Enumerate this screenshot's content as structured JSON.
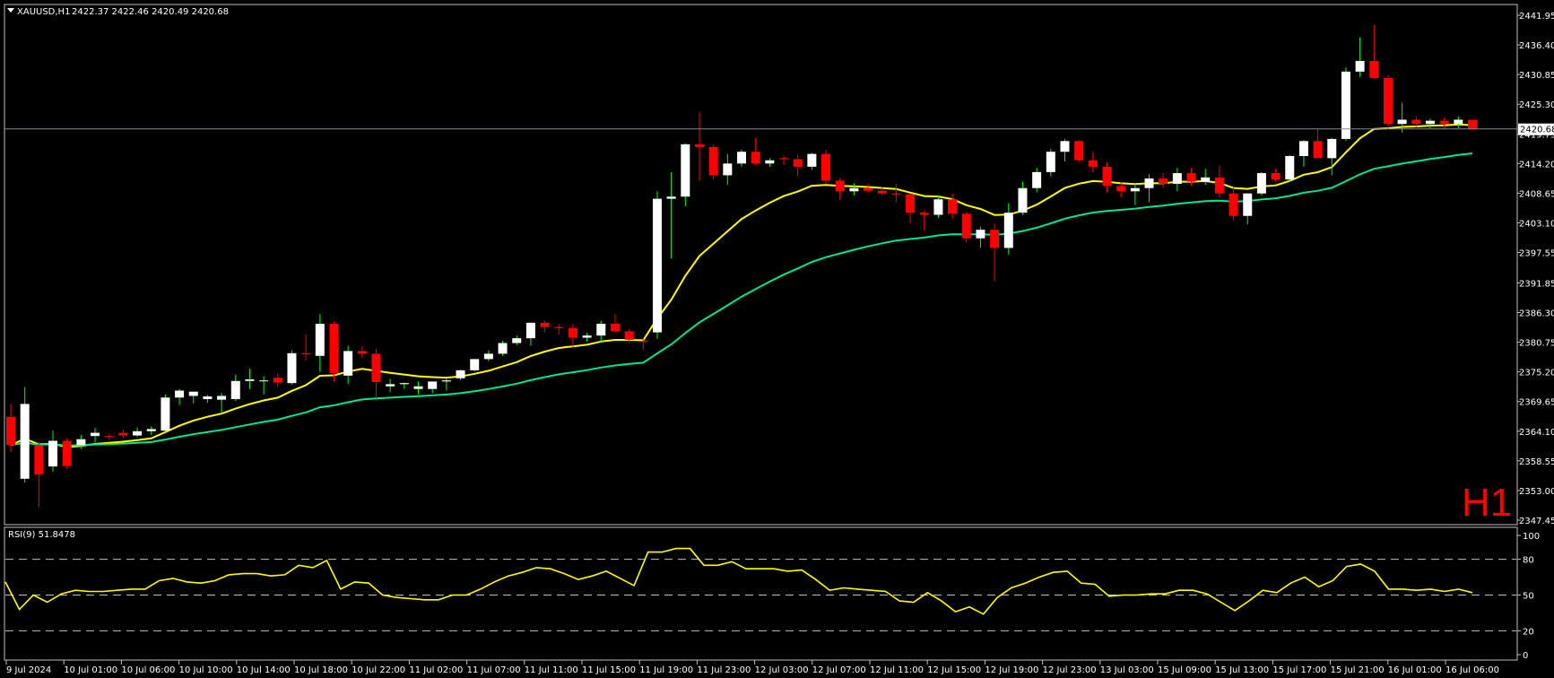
{
  "window": {
    "symbol": "XAUUSD,H1",
    "ohlc": "2422.37 2422.46 2420.49 2420.68",
    "timeframe_label": "H1"
  },
  "chart_data": [
    {
      "type": "candlestick",
      "ylim": [
        2347.45,
        2441.95
      ],
      "y_ticks": [
        "2441.95",
        "2436.40",
        "2430.85",
        "2425.30",
        "2419.75",
        "2414.20",
        "2408.65",
        "2403.10",
        "2397.55",
        "2391.85",
        "2386.30",
        "2380.75",
        "2375.20",
        "2369.65",
        "2364.10",
        "2358.55",
        "2353.00",
        "2347.45"
      ],
      "current_price": "2420.68",
      "x_tick_labels": [
        "9 Jul 2024",
        "10 Jul 01:00",
        "10 Jul 06:00",
        "10 Jul 10:00",
        "10 Jul 14:00",
        "10 Jul 18:00",
        "10 Jul 22:00",
        "11 Jul 02:00",
        "11 Jul 07:00",
        "11 Jul 11:00",
        "11 Jul 15:00",
        "11 Jul 19:00",
        "11 Jul 23:00",
        "12 Jul 03:00",
        "12 Jul 07:00",
        "12 Jul 11:00",
        "12 Jul 15:00",
        "12 Jul 19:00",
        "12 Jul 23:00",
        "13 Jul 03:00",
        "15 Jul 09:00",
        "15 Jul 13:00",
        "15 Jul 17:00",
        "15 Jul 21:00",
        "16 Jul 01:00",
        "16 Jul 06:00"
      ],
      "colors": {
        "bull": "#ffffff",
        "bear": "#ff0000",
        "ma_fast": "#ffff00",
        "ma_slow": "#00e68a",
        "wick_bull": "#00ff00",
        "wick_bear": "#ff0000"
      },
      "candles": [
        [
          2366.8,
          2369.2,
          2360.2,
          2361.5
        ],
        [
          2355.2,
          2372.4,
          2354.5,
          2369.2
        ],
        [
          2361.5,
          2362.0,
          2349.8,
          2356.0
        ],
        [
          2357.5,
          2364.2,
          2356.5,
          2362.3
        ],
        [
          2362.3,
          2362.8,
          2357.0,
          2357.6
        ],
        [
          2361.5,
          2363.4,
          2360.8,
          2362.6
        ],
        [
          2363.2,
          2364.7,
          2362.0,
          2363.8
        ],
        [
          2363.2,
          2363.6,
          2362.5,
          2363.0
        ],
        [
          2363.8,
          2364.4,
          2362.8,
          2363.3
        ],
        [
          2363.3,
          2364.8,
          2363.0,
          2364.1
        ],
        [
          2364.1,
          2365.0,
          2363.4,
          2364.5
        ],
        [
          2364.2,
          2371.0,
          2364.0,
          2370.4
        ],
        [
          2370.4,
          2372.0,
          2369.0,
          2371.7
        ],
        [
          2370.7,
          2371.4,
          2369.3,
          2371.5
        ],
        [
          2370.1,
          2370.9,
          2369.4,
          2370.6
        ],
        [
          2370.0,
          2371.3,
          2367.4,
          2370.7
        ],
        [
          2370.1,
          2374.7,
          2369.8,
          2373.5
        ],
        [
          2373.5,
          2375.8,
          2372.0,
          2373.8
        ],
        [
          2373.5,
          2374.4,
          2371.0,
          2373.6
        ],
        [
          2374.1,
          2374.9,
          2372.4,
          2373.2
        ],
        [
          2373.1,
          2379.2,
          2372.8,
          2378.7
        ],
        [
          2378.7,
          2382.2,
          2377.3,
          2378.5
        ],
        [
          2378.2,
          2386.0,
          2375.2,
          2384.2
        ],
        [
          2384.2,
          2384.6,
          2373.4,
          2375.0
        ],
        [
          2374.5,
          2380.1,
          2372.9,
          2379.1
        ],
        [
          2379.1,
          2380.0,
          2377.8,
          2378.6
        ],
        [
          2378.6,
          2379.5,
          2369.8,
          2373.3
        ],
        [
          2372.5,
          2373.9,
          2371.4,
          2372.9
        ],
        [
          2372.9,
          2373.2,
          2372.0,
          2373.1
        ],
        [
          2372.0,
          2373.4,
          2371.0,
          2372.5
        ],
        [
          2372.0,
          2373.4,
          2371.2,
          2373.4
        ],
        [
          2373.4,
          2374.0,
          2371.7,
          2373.6
        ],
        [
          2374.0,
          2375.6,
          2373.6,
          2375.5
        ],
        [
          2375.5,
          2377.6,
          2375.3,
          2377.6
        ],
        [
          2377.6,
          2379.2,
          2377.2,
          2378.6
        ],
        [
          2378.6,
          2381.0,
          2378.2,
          2380.6
        ],
        [
          2380.6,
          2382.0,
          2380.2,
          2381.5
        ],
        [
          2381.5,
          2384.4,
          2380.1,
          2384.4
        ],
        [
          2384.4,
          2384.8,
          2382.6,
          2383.6
        ],
        [
          2383.6,
          2384.2,
          2382.2,
          2383.4
        ],
        [
          2383.4,
          2384.2,
          2379.8,
          2381.6
        ],
        [
          2381.6,
          2382.5,
          2380.9,
          2382.0
        ],
        [
          2382.0,
          2384.8,
          2380.8,
          2384.2
        ],
        [
          2384.2,
          2386.0,
          2382.6,
          2382.8
        ],
        [
          2382.8,
          2383.2,
          2380.6,
          2381.2
        ],
        [
          2381.0,
          2381.6,
          2379.3,
          2380.8
        ],
        [
          2382.6,
          2409.0,
          2381.4,
          2407.6
        ],
        [
          2407.6,
          2412.6,
          2396.4,
          2408.0
        ],
        [
          2408.0,
          2418.0,
          2406.2,
          2417.8
        ],
        [
          2417.8,
          2423.8,
          2411.0,
          2417.3
        ],
        [
          2417.3,
          2417.8,
          2411.2,
          2412.0
        ],
        [
          2412.0,
          2416.0,
          2410.2,
          2414.2
        ],
        [
          2414.2,
          2416.8,
          2413.6,
          2416.4
        ],
        [
          2416.4,
          2419.0,
          2413.8,
          2414.2
        ],
        [
          2414.2,
          2415.2,
          2413.6,
          2414.8
        ],
        [
          2415.2,
          2415.6,
          2413.9,
          2415.0
        ],
        [
          2415.0,
          2415.8,
          2411.8,
          2413.6
        ],
        [
          2413.6,
          2416.2,
          2413.0,
          2416.0
        ],
        [
          2416.0,
          2416.8,
          2410.4,
          2411.0
        ],
        [
          2411.0,
          2411.4,
          2407.4,
          2409.0
        ],
        [
          2409.0,
          2410.5,
          2408.2,
          2409.6
        ],
        [
          2409.6,
          2410.4,
          2408.8,
          2409.1
        ],
        [
          2409.1,
          2409.8,
          2408.2,
          2408.6
        ],
        [
          2408.6,
          2410.4,
          2407.0,
          2408.4
        ],
        [
          2408.4,
          2408.6,
          2403.0,
          2405.0
        ],
        [
          2405.0,
          2405.4,
          2401.6,
          2404.6
        ],
        [
          2404.6,
          2408.2,
          2404.0,
          2407.5
        ],
        [
          2407.5,
          2408.6,
          2403.8,
          2404.8
        ],
        [
          2404.8,
          2405.2,
          2399.4,
          2400.2
        ],
        [
          2400.2,
          2402.4,
          2398.4,
          2401.8
        ],
        [
          2401.8,
          2403.0,
          2392.2,
          2398.4
        ],
        [
          2398.4,
          2406.8,
          2397.2,
          2405.0
        ],
        [
          2405.0,
          2410.8,
          2404.6,
          2409.6
        ],
        [
          2409.6,
          2413.4,
          2408.8,
          2412.6
        ],
        [
          2412.6,
          2417.0,
          2411.8,
          2416.4
        ],
        [
          2416.4,
          2418.8,
          2414.6,
          2418.4
        ],
        [
          2418.4,
          2418.6,
          2414.4,
          2414.8
        ],
        [
          2414.8,
          2416.4,
          2412.6,
          2413.6
        ],
        [
          2413.6,
          2414.4,
          2408.8,
          2410.0
        ],
        [
          2410.0,
          2410.6,
          2407.8,
          2409.0
        ],
        [
          2409.0,
          2410.4,
          2406.4,
          2409.6
        ],
        [
          2409.6,
          2412.2,
          2407.0,
          2411.4
        ],
        [
          2411.4,
          2412.4,
          2409.6,
          2410.4
        ],
        [
          2410.4,
          2413.4,
          2409.0,
          2412.4
        ],
        [
          2412.4,
          2413.4,
          2410.0,
          2410.8
        ],
        [
          2410.8,
          2413.2,
          2410.2,
          2411.6
        ],
        [
          2411.6,
          2413.8,
          2407.8,
          2408.6
        ],
        [
          2408.6,
          2410.0,
          2403.6,
          2404.4
        ],
        [
          2404.4,
          2408.6,
          2402.8,
          2408.6
        ],
        [
          2408.6,
          2412.6,
          2408.2,
          2412.4
        ],
        [
          2412.4,
          2413.2,
          2410.8,
          2411.2
        ],
        [
          2411.2,
          2415.8,
          2410.8,
          2415.6
        ],
        [
          2415.6,
          2418.6,
          2413.6,
          2418.4
        ],
        [
          2418.4,
          2420.8,
          2415.4,
          2415.2
        ],
        [
          2415.2,
          2419.0,
          2412.0,
          2418.8
        ],
        [
          2418.8,
          2432.2,
          2418.4,
          2431.4
        ],
        [
          2431.4,
          2437.8,
          2430.4,
          2433.4
        ],
        [
          2433.4,
          2440.2,
          2430.0,
          2430.2
        ],
        [
          2430.2,
          2430.8,
          2420.6,
          2421.6
        ],
        [
          2421.6,
          2425.6,
          2420.0,
          2422.4
        ],
        [
          2422.4,
          2423.0,
          2421.0,
          2421.6
        ],
        [
          2421.6,
          2422.6,
          2420.8,
          2422.2
        ],
        [
          2422.2,
          2422.8,
          2420.6,
          2421.6
        ],
        [
          2421.6,
          2423.0,
          2420.8,
          2422.4
        ],
        [
          2422.37,
          2422.46,
          2420.49,
          2420.68
        ]
      ]
    },
    {
      "type": "line",
      "title": "RSI(9) 51.8478",
      "ylim": [
        0,
        100
      ],
      "y_ticks": [
        100,
        80,
        50,
        20,
        0
      ],
      "levels": [
        80,
        50,
        20
      ],
      "series": [
        {
          "color": "#ffff00",
          "values": [
            61,
            38,
            50,
            44,
            51,
            54,
            53,
            53,
            54,
            55,
            55,
            62,
            64,
            61,
            60,
            62,
            67,
            68,
            68,
            66,
            67,
            75,
            73,
            79,
            55,
            61,
            60,
            50,
            48,
            47,
            46,
            46,
            50,
            50,
            55,
            61,
            66,
            69,
            73,
            72,
            68,
            63,
            66,
            70,
            64,
            58,
            86,
            86,
            89,
            89,
            75,
            75,
            78,
            72,
            72,
            72,
            70,
            71,
            63,
            54,
            56,
            55,
            54,
            53,
            45,
            44,
            52,
            45,
            36,
            40,
            34,
            48,
            56,
            60,
            65,
            69,
            70,
            60,
            59,
            49,
            50,
            50,
            51,
            51,
            54,
            54,
            51,
            44,
            37,
            45,
            54,
            52,
            60,
            65,
            57,
            62,
            74,
            76,
            70,
            55,
            55,
            54,
            55,
            53,
            55,
            52
          ]
        }
      ]
    }
  ]
}
